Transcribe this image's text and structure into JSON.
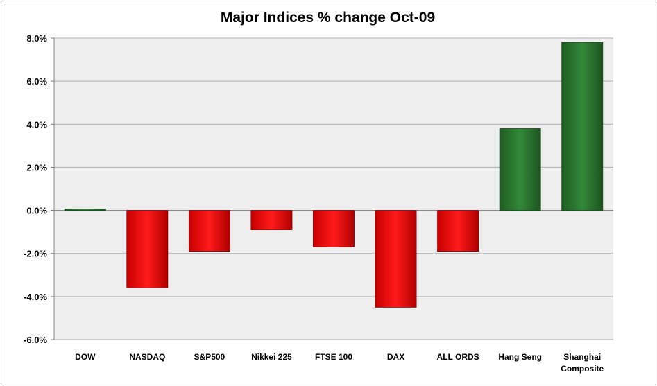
{
  "chart_data": {
    "type": "bar",
    "title": "Major Indices % change Oct-09",
    "xlabel": "",
    "ylabel": "",
    "categories": [
      "DOW",
      "NASDAQ",
      "S&P500",
      "Nikkei 225",
      "FTSE 100",
      "DAX",
      "ALL ORDS",
      "Hang Seng",
      "Shanghai Composite"
    ],
    "category_lines": [
      [
        "DOW"
      ],
      [
        "NASDAQ"
      ],
      [
        "S&P500"
      ],
      [
        "Nikkei 225"
      ],
      [
        "FTSE 100"
      ],
      [
        "DAX"
      ],
      [
        "ALL ORDS"
      ],
      [
        "Hang Seng"
      ],
      [
        "Shanghai",
        "Composite"
      ]
    ],
    "values": [
      0.0,
      -3.6,
      -1.9,
      -0.9,
      -1.7,
      -4.5,
      -1.9,
      3.8,
      7.8
    ],
    "ylim": [
      -6,
      8
    ],
    "yticks": [
      -6,
      -4,
      -2,
      0,
      2,
      4,
      6,
      8
    ],
    "ytick_labels": [
      "-6.0%",
      "-4.0%",
      "-2.0%",
      "0.0%",
      "2.0%",
      "4.0%",
      "6.0%",
      "8.0%"
    ],
    "grid": true,
    "legend": "none",
    "colors": {
      "negative": "#ff0000",
      "positive": "#2e7d32",
      "plot_background": "#eeeeee",
      "gridline": "#b0b0b0"
    }
  }
}
